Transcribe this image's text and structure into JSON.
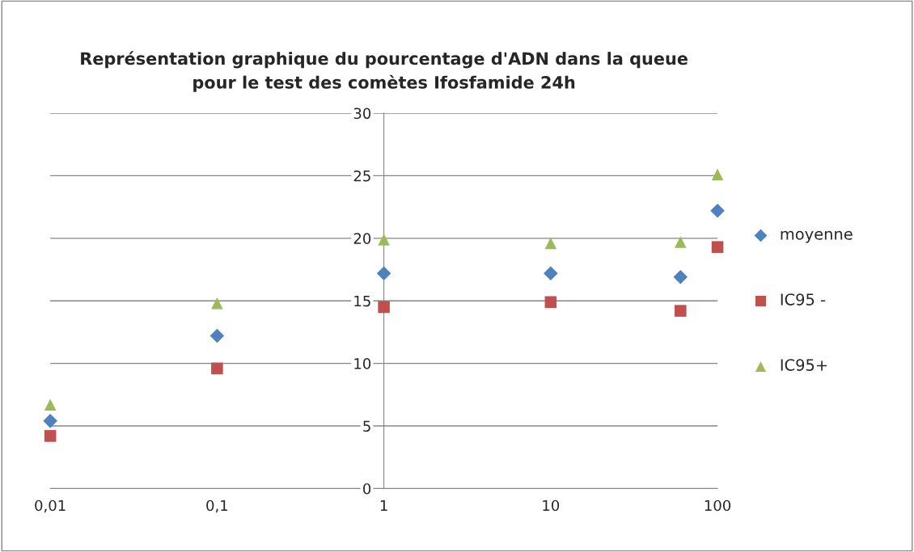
{
  "chart_data": {
    "type": "scatter",
    "title": "Représentation graphique du pourcentage d'ADN dans la queue\npour le test des comètes Ifosfamide 24h",
    "x": [
      0.01,
      0.1,
      1,
      10,
      60,
      100
    ],
    "series": [
      {
        "name": "moyenne",
        "color": "#4f81bd",
        "marker": "diamond",
        "values": [
          5.4,
          12.2,
          17.2,
          17.2,
          16.9,
          22.2
        ]
      },
      {
        "name": "IC95 -",
        "color": "#c0504d",
        "marker": "square",
        "values": [
          4.2,
          9.6,
          14.5,
          14.9,
          14.2,
          19.3
        ]
      },
      {
        "name": "IC95+",
        "color": "#9bbb59",
        "marker": "triangle",
        "values": [
          6.7,
          14.8,
          19.9,
          19.6,
          19.7,
          25.1
        ]
      }
    ],
    "log": "x",
    "xlim": [
      0.01,
      100
    ],
    "xticks": [
      {
        "value": 0.01,
        "label": "0,01"
      },
      {
        "value": 0.1,
        "label": "0,1"
      },
      1,
      10,
      100
    ],
    "ylim": [
      0,
      30
    ],
    "yticks": [
      0,
      5,
      10,
      15,
      20,
      25,
      30
    ],
    "grid": "y",
    "legend": "right"
  }
}
